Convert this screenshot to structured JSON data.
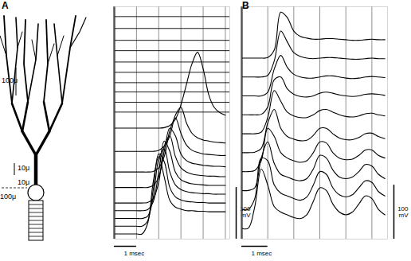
{
  "chart_data": [
    {
      "type": "line",
      "title": "A",
      "color": "#000000",
      "grid": true,
      "tick_labels": false,
      "xlim": [
        0,
        5.2
      ],
      "xticks": [
        0,
        1,
        2,
        3,
        4,
        5
      ],
      "ylim": [
        0,
        450
      ],
      "yticks": [],
      "x": [
        0,
        0.25,
        0.5,
        0.75,
        1,
        1.25,
        1.5,
        1.75,
        2,
        2.25,
        2.5,
        2.75,
        3,
        3.25,
        3.5,
        3.75,
        4,
        4.25,
        4.5,
        4.75,
        5
      ],
      "series": [
        {
          "values": [
            10,
            10,
            10,
            10,
            10,
            10,
            30,
            110,
            160,
            120,
            75,
            62,
            58,
            55,
            55,
            54,
            54,
            53,
            53,
            53,
            53
          ]
        },
        {
          "values": [
            25,
            25,
            25,
            25,
            25,
            25,
            35,
            95,
            165,
            150,
            100,
            82,
            76,
            73,
            72,
            71,
            71,
            70,
            70,
            70,
            70
          ]
        },
        {
          "values": [
            40,
            40,
            40,
            40,
            40,
            40,
            44,
            80,
            155,
            175,
            130,
            105,
            96,
            92,
            90,
            89,
            88,
            88,
            87,
            87,
            87
          ]
        },
        {
          "values": [
            55,
            55,
            55,
            55,
            55,
            55,
            57,
            72,
            130,
            190,
            170,
            130,
            115,
            110,
            107,
            106,
            105,
            104,
            104,
            104,
            104
          ]
        },
        {
          "values": [
            70,
            70,
            70,
            70,
            70,
            70,
            71,
            78,
            110,
            180,
            200,
            160,
            138,
            130,
            126,
            124,
            123,
            122,
            122,
            121,
            121
          ]
        },
        {
          "values": [
            100,
            100,
            100,
            100,
            100,
            100,
            100,
            104,
            120,
            170,
            215,
            200,
            165,
            152,
            147,
            145,
            143,
            142,
            141,
            141,
            140
          ]
        },
        {
          "values": [
            130,
            130,
            130,
            130,
            130,
            130,
            130,
            131,
            138,
            160,
            210,
            235,
            205,
            182,
            172,
            168,
            165,
            164,
            163,
            162,
            162
          ]
        },
        {
          "values": [
            170,
            170,
            170,
            170,
            170,
            170,
            170,
            170,
            172,
            180,
            200,
            240,
            255,
            225,
            205,
            196,
            192,
            190,
            188,
            187,
            186
          ]
        },
        {
          "values": [
            215,
            215,
            215,
            215,
            215,
            215,
            215,
            215,
            215,
            216,
            220,
            232,
            260,
            300,
            340,
            362,
            330,
            280,
            255,
            245,
            240
          ]
        }
      ],
      "baselines": [
        246,
        265,
        285,
        303,
        323,
        343,
        365,
        385,
        408,
        431
      ],
      "scale_bar": {
        "x": 1,
        "x_label": "1 msec",
        "y": 100,
        "y_label": "100\nmV"
      }
    },
    {
      "type": "line",
      "title": "B",
      "color": "#000000",
      "grid": true,
      "tick_labels": false,
      "xlim": [
        0,
        5.6
      ],
      "xticks": [
        0,
        1,
        2,
        3,
        4,
        5
      ],
      "ylim": [
        0,
        430
      ],
      "yticks": [],
      "x": [
        0,
        0.25,
        0.5,
        0.75,
        1,
        1.25,
        1.5,
        1.75,
        2,
        2.25,
        2.5,
        2.75,
        3,
        3.25,
        3.5,
        3.75,
        4,
        4.25,
        4.5,
        4.75,
        5,
        5.25,
        5.5
      ],
      "series": [
        {
          "values": [
            20,
            20,
            60,
            130,
            100,
            60,
            50,
            45,
            40,
            38,
            45,
            70,
            95,
            90,
            65,
            50,
            45,
            50,
            65,
            80,
            75,
            55,
            45
          ]
        },
        {
          "values": [
            55,
            55,
            75,
            150,
            145,
            100,
            85,
            80,
            75,
            72,
            78,
            100,
            125,
            120,
            95,
            82,
            78,
            82,
            95,
            108,
            105,
            88,
            80
          ]
        },
        {
          "values": [
            90,
            90,
            95,
            150,
            180,
            140,
            120,
            115,
            110,
            108,
            112,
            130,
            155,
            150,
            128,
            115,
            112,
            115,
            125,
            138,
            135,
            120,
            112
          ]
        },
        {
          "values": [
            125,
            125,
            127,
            145,
            205,
            190,
            160,
            150,
            145,
            142,
            145,
            160,
            180,
            178,
            160,
            150,
            147,
            148,
            155,
            165,
            165,
            155,
            150
          ]
        },
        {
          "values": [
            160,
            160,
            161,
            168,
            215,
            240,
            205,
            190,
            185,
            182,
            183,
            192,
            205,
            205,
            195,
            187,
            184,
            184,
            188,
            195,
            196,
            190,
            186
          ]
        },
        {
          "values": [
            195,
            195,
            195,
            198,
            225,
            275,
            255,
            235,
            228,
            225,
            225,
            230,
            238,
            240,
            235,
            230,
            227,
            226,
            228,
            232,
            233,
            230,
            228
          ]
        },
        {
          "values": [
            230,
            230,
            230,
            231,
            245,
            295,
            300,
            278,
            268,
            264,
            263,
            265,
            270,
            272,
            270,
            267,
            265,
            264,
            265,
            268,
            269,
            268,
            266
          ]
        },
        {
          "values": [
            265,
            265,
            265,
            265,
            272,
            315,
            340,
            318,
            305,
            300,
            298,
            298,
            300,
            302,
            302,
            300,
            298,
            297,
            298,
            300,
            301,
            300,
            299
          ]
        },
        {
          "values": [
            300,
            300,
            300,
            300,
            303,
            330,
            385,
            365,
            345,
            338,
            335,
            334,
            335,
            336,
            336,
            335,
            334,
            333,
            333,
            334,
            335,
            334,
            334
          ]
        },
        {
          "values": [
            335,
            335,
            335,
            335,
            336,
            350,
            420,
            410,
            385,
            375,
            372,
            370,
            370,
            371,
            371,
            370,
            369,
            368,
            368,
            369,
            370,
            369,
            369
          ]
        }
      ],
      "baselines": [],
      "scale_bar": {
        "x": 1,
        "x_label": "1 msec",
        "y": 100,
        "y_label": "100\nmV"
      }
    }
  ],
  "diagram": {
    "labels": [
      "100μ",
      "10μ",
      "10μ",
      "100μ"
    ]
  }
}
